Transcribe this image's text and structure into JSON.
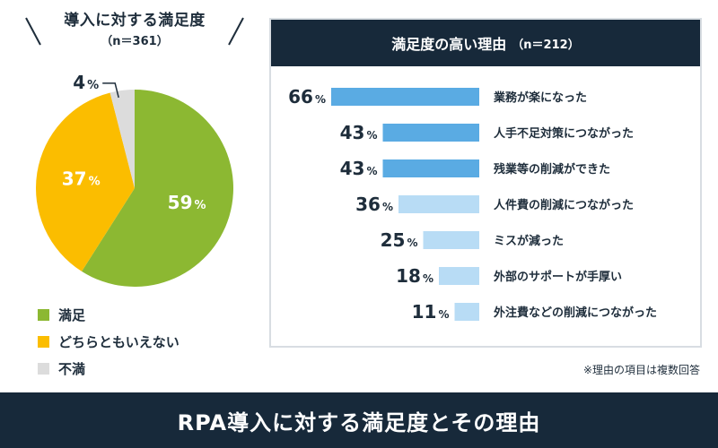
{
  "pie": {
    "title": "導入に対する満足度",
    "n_label": "（n＝361）"
  },
  "bar": {
    "title": "満足度の高い理由",
    "n_label": "（n＝212）"
  },
  "footnote": "※理由の項目は複数回答",
  "footer_title": "RPA導入に対する満足度とその理由",
  "chart_data": [
    {
      "type": "pie",
      "title": "導入に対する満足度",
      "subtitle": "（n＝361）",
      "unit": "%",
      "slices": [
        {
          "label": "満足",
          "value": 59,
          "color": "#8cb832"
        },
        {
          "label": "どちらともいえない",
          "value": 37,
          "color": "#fbbd00"
        },
        {
          "label": "不満",
          "value": 4,
          "color": "#dcdcdc"
        }
      ]
    },
    {
      "type": "bar",
      "orientation": "horizontal",
      "title": "満足度の高い理由",
      "subtitle": "（n＝212）",
      "unit": "%",
      "categories": [
        "業務が楽になった",
        "人手不足対策につながった",
        "残業等の削減ができた",
        "人件費の削減につながった",
        "ミスが減った",
        "外部のサポートが手厚い",
        "外注費などの削減につながった"
      ],
      "values": [
        66,
        43,
        43,
        36,
        25,
        18,
        11
      ],
      "colors": [
        "#5aabe3",
        "#5aabe3",
        "#5aabe3",
        "#b8dcf5",
        "#b8dcf5",
        "#b8dcf5",
        "#b8dcf5"
      ]
    }
  ]
}
